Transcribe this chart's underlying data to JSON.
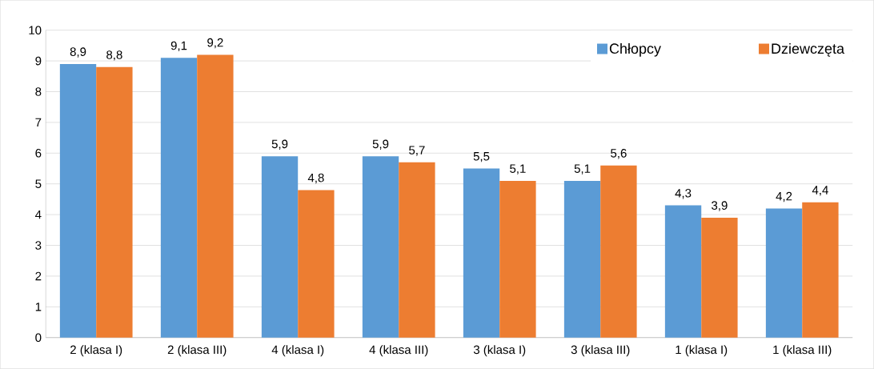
{
  "chart_data": {
    "type": "bar",
    "categories": [
      "2 (klasa I)",
      "2 (klasa III)",
      "4 (klasa I)",
      "4 (klasa III)",
      "3 (klasa I)",
      "3 (klasa III)",
      "1 (klasa I)",
      "1 (klasa III)"
    ],
    "series": [
      {
        "name": "Chłopcy",
        "color": "#5b9bd5",
        "values": [
          8.9,
          9.1,
          5.9,
          5.9,
          5.5,
          5.1,
          4.3,
          4.2
        ],
        "value_labels": [
          "8,9",
          "9,1",
          "5,9",
          "5,9",
          "5,5",
          "5,1",
          "4,3",
          "4,2"
        ]
      },
      {
        "name": "Dziewczęta",
        "color": "#ed7d31",
        "values": [
          8.8,
          9.2,
          4.8,
          5.7,
          5.1,
          5.6,
          3.9,
          4.4
        ],
        "value_labels": [
          "8,8",
          "9,2",
          "4,8",
          "5,7",
          "5,1",
          "5,6",
          "3,9",
          "4,4"
        ]
      }
    ],
    "ylim": [
      0,
      10
    ],
    "yticks": [
      0,
      1,
      2,
      3,
      4,
      5,
      6,
      7,
      8,
      9,
      10
    ],
    "grid": "y",
    "legend": "top right"
  }
}
